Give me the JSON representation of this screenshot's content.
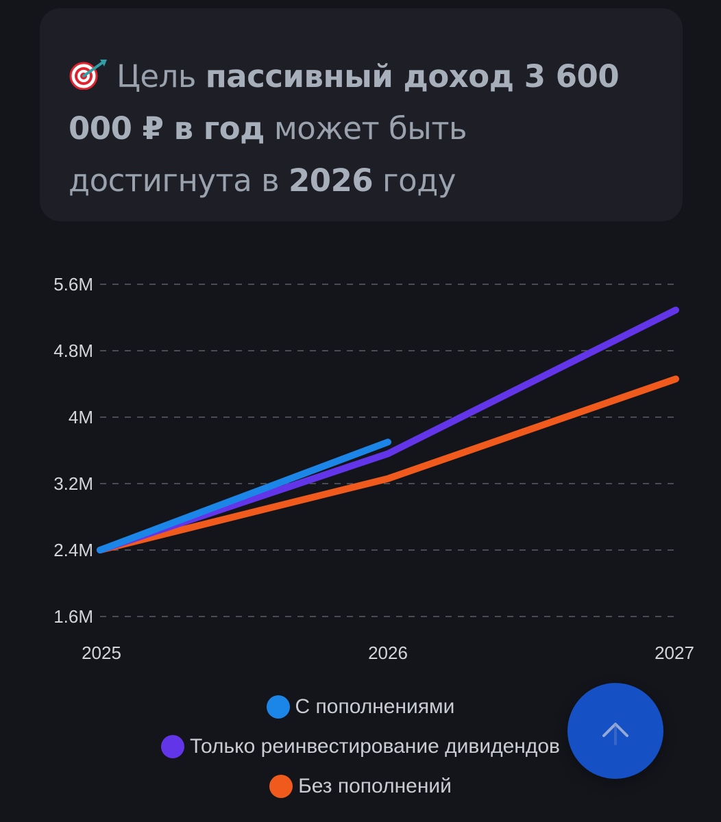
{
  "goal": {
    "prefix": "Цель",
    "bold1": "пассивный доход 3 600 000 ₽ в год",
    "mid": "может быть достигнута в",
    "year": "2026",
    "suffix": "году"
  },
  "colors": {
    "background": "#14151b",
    "card": "#1d1e26",
    "grid": "#5b5e68",
    "tick_text": "#d3d5da"
  },
  "chart_data": {
    "type": "line",
    "x": [
      "2025",
      "2026",
      "2027"
    ],
    "ylim": [
      1600000,
      5600000
    ],
    "yticks": [
      1600000,
      2400000,
      3200000,
      4000000,
      4800000,
      5600000
    ],
    "ytick_labels": [
      "1.6M",
      "2.4M",
      "3.2M",
      "4M",
      "4.8M",
      "5.6M"
    ],
    "grid": true,
    "legend_position": "bottom",
    "series": [
      {
        "name": "С пополнениями",
        "color": "#1c86e8",
        "values": [
          2400000,
          3700000,
          null
        ]
      },
      {
        "name": "Только реинвестирование дивидендов",
        "color": "#6236e8",
        "values": [
          2400000,
          3560000,
          5290000
        ]
      },
      {
        "name": "Без пополнений",
        "color": "#f05a1c",
        "values": [
          2400000,
          3260000,
          4460000
        ]
      }
    ]
  },
  "fab": {
    "icon": "arrow-up-icon"
  }
}
